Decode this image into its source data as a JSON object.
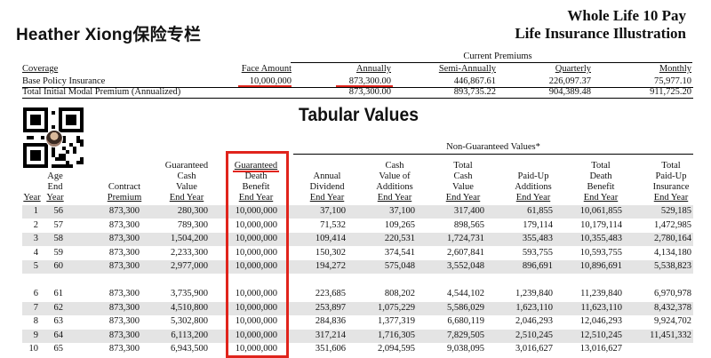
{
  "brand": "Heather Xiong保险专栏",
  "doc_title": {
    "line1": "Whole Life 10 Pay",
    "line2": "Life Insurance Illustration"
  },
  "premiums": {
    "current_premiums_label": "Current Premiums",
    "headers": {
      "coverage": "Coverage",
      "face_amount": "Face Amount",
      "annually": "Annually",
      "semi_annually": "Semi-Annually",
      "quarterly": "Quarterly",
      "monthly": "Monthly"
    },
    "base": {
      "label": "Base Policy Insurance",
      "face_amount": "10,000,000",
      "annually": "873,300.00",
      "semi_annually": "446,867.61",
      "quarterly": "226,097.37",
      "monthly": "75,977.10"
    },
    "total": {
      "label": "Total Initial Modal Premium (Annualized)",
      "annually": "873,300.00",
      "semi_annually": "893,735.22",
      "quarterly": "904,389.48",
      "monthly": "911,725.20"
    }
  },
  "tabular_title": "Tabular Values",
  "non_guaranteed_label": "Non-Guaranteed Values*",
  "columns": [
    {
      "lines": [
        "",
        "",
        "",
        "Year"
      ]
    },
    {
      "lines": [
        "",
        "Age",
        "End",
        "Year"
      ]
    },
    {
      "lines": [
        "",
        "",
        "Contract",
        "Premium"
      ]
    },
    {
      "lines": [
        "Guaranteed",
        "Cash",
        "Value",
        "End Year"
      ]
    },
    {
      "lines": [
        "Guaranteed",
        "Death",
        "Benefit",
        "End Year"
      ]
    },
    {
      "lines": [
        "",
        "Annual",
        "Dividend",
        "End Year"
      ]
    },
    {
      "lines": [
        "Cash",
        "Value of",
        "Additions",
        "End Year"
      ]
    },
    {
      "lines": [
        "Total",
        "Cash",
        "Value",
        "End Year"
      ]
    },
    {
      "lines": [
        "",
        "Paid-Up",
        "Additions",
        "End Year"
      ]
    },
    {
      "lines": [
        "Total",
        "Death",
        "Benefit",
        "End Year"
      ]
    },
    {
      "lines": [
        "Total",
        "Paid-Up",
        "Insurance",
        "End Year"
      ]
    }
  ],
  "rows": [
    [
      "1",
      "56",
      "873,300",
      "280,300",
      "10,000,000",
      "37,100",
      "37,100",
      "317,400",
      "61,855",
      "10,061,855",
      "529,185"
    ],
    [
      "2",
      "57",
      "873,300",
      "789,300",
      "10,000,000",
      "71,532",
      "109,265",
      "898,565",
      "179,114",
      "10,179,114",
      "1,472,985"
    ],
    [
      "3",
      "58",
      "873,300",
      "1,504,200",
      "10,000,000",
      "109,414",
      "220,531",
      "1,724,731",
      "355,483",
      "10,355,483",
      "2,780,164"
    ],
    [
      "4",
      "59",
      "873,300",
      "2,233,300",
      "10,000,000",
      "150,302",
      "374,541",
      "2,607,841",
      "593,755",
      "10,593,755",
      "4,134,180"
    ],
    [
      "5",
      "60",
      "873,300",
      "2,977,000",
      "10,000,000",
      "194,272",
      "575,048",
      "3,552,048",
      "896,691",
      "10,896,691",
      "5,538,823"
    ],
    [
      "6",
      "61",
      "873,300",
      "3,735,900",
      "10,000,000",
      "223,685",
      "808,202",
      "4,544,102",
      "1,239,840",
      "11,239,840",
      "6,970,978"
    ],
    [
      "7",
      "62",
      "873,300",
      "4,510,800",
      "10,000,000",
      "253,897",
      "1,075,229",
      "5,586,029",
      "1,623,110",
      "11,623,110",
      "8,432,378"
    ],
    [
      "8",
      "63",
      "873,300",
      "5,302,800",
      "10,000,000",
      "284,836",
      "1,377,319",
      "6,680,119",
      "2,046,293",
      "12,046,293",
      "9,924,702"
    ],
    [
      "9",
      "64",
      "873,300",
      "6,113,200",
      "10,000,000",
      "317,214",
      "1,716,305",
      "7,829,505",
      "2,510,245",
      "12,510,245",
      "11,451,332"
    ],
    [
      "10",
      "65",
      "873,300",
      "6,943,500",
      "10,000,000",
      "351,606",
      "2,094,595",
      "9,038,095",
      "3,016,627",
      "13,016,627",
      ""
    ]
  ],
  "colors": {
    "highlight_red": "#e0241c",
    "stripe_gray": "#e4e4e4"
  }
}
